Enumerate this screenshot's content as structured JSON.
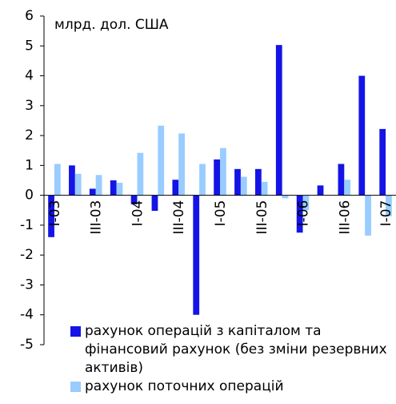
{
  "chart_data": {
    "type": "bar",
    "y_label": "млрд. дол. США",
    "categories": [
      "I-03",
      null,
      "III-03",
      null,
      "I-04",
      null,
      "III-04",
      null,
      "I-05",
      null,
      "III-05",
      null,
      "I-06",
      null,
      "III-06",
      null,
      "I-07"
    ],
    "series": [
      {
        "name": "рахунок операцій з капіталом та фінансовий рахунок (без зміни резервних активів)",
        "color": "#1414e6",
        "values": [
          -1.4,
          1.0,
          0.22,
          0.5,
          -0.3,
          -0.52,
          0.52,
          -4.0,
          1.2,
          0.88,
          0.88,
          5.03,
          -1.25,
          0.33,
          1.05,
          4.0,
          2.22
        ]
      },
      {
        "name": "рахунок поточних операцій",
        "color": "#99ccff",
        "values": [
          1.05,
          0.72,
          0.68,
          0.42,
          1.42,
          2.33,
          2.07,
          1.05,
          1.58,
          0.62,
          0.45,
          -0.1,
          -0.5,
          0,
          0.52,
          -1.35,
          -0.7
        ]
      }
    ],
    "ylim": [
      -5,
      6
    ],
    "yticks": [
      -5,
      -4,
      -3,
      -2,
      -1,
      0,
      1,
      2,
      3,
      4,
      5,
      6
    ]
  }
}
